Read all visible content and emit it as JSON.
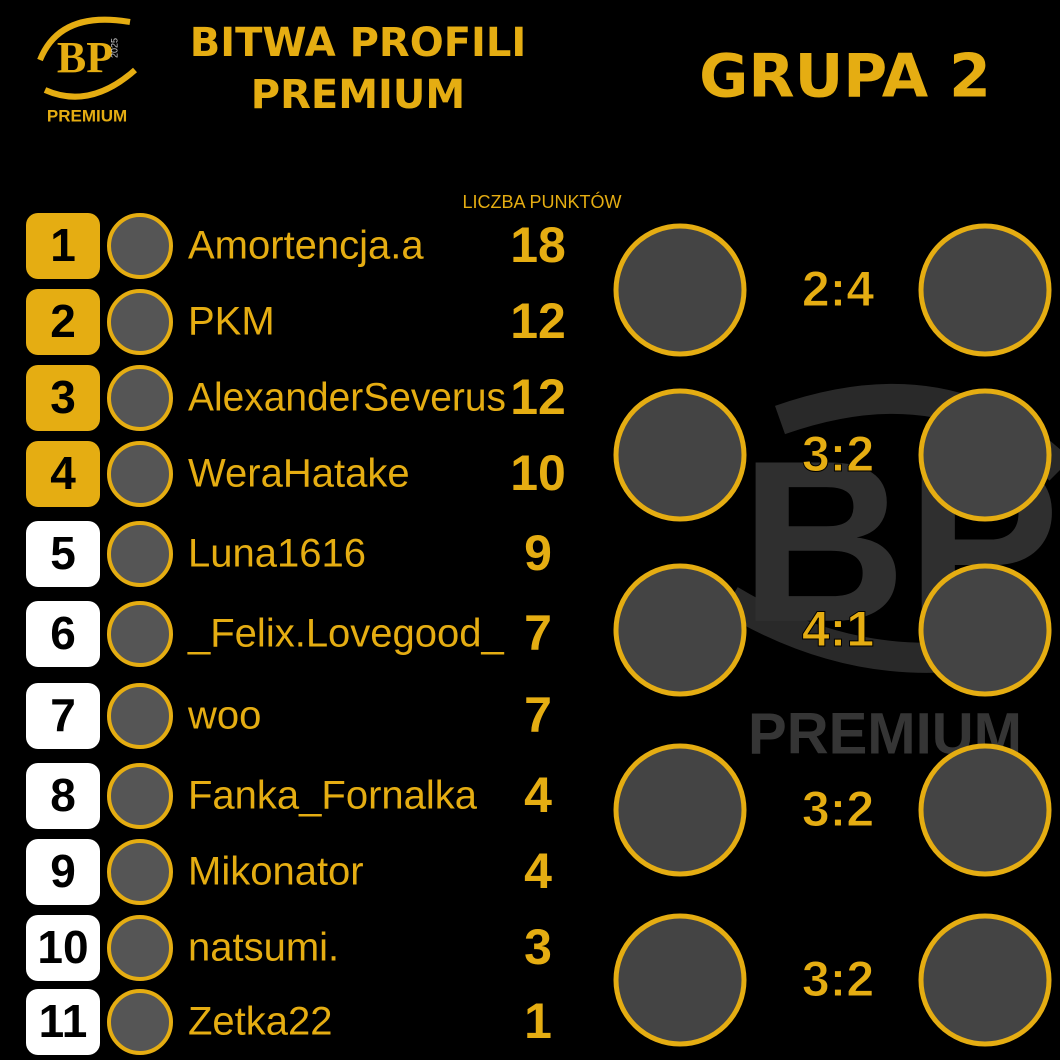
{
  "logo": {
    "initials": "BP",
    "year": "2025",
    "label": "PREMIUM"
  },
  "header": {
    "title_line1": "BITWA PROFILI",
    "title_line2": "PREMIUM",
    "group": "GRUPA 2"
  },
  "table": {
    "points_header": "LICZBA PUNKTÓW",
    "rows": [
      {
        "rank": 1,
        "name": "Amortencja.a",
        "points": 18
      },
      {
        "rank": 2,
        "name": "PKM",
        "points": 12
      },
      {
        "rank": 3,
        "name": "AlexanderSeverus",
        "points": 12
      },
      {
        "rank": 4,
        "name": "WeraHatake",
        "points": 10
      },
      {
        "rank": 5,
        "name": "Luna1616",
        "points": 9
      },
      {
        "rank": 6,
        "name": "_Felix.Lovegood_",
        "points": 7
      },
      {
        "rank": 7,
        "name": "woo",
        "points": 7
      },
      {
        "rank": 8,
        "name": "Fanka_Fornalka",
        "points": 4
      },
      {
        "rank": 9,
        "name": "Mikonator",
        "points": 4
      },
      {
        "rank": 10,
        "name": "natsumi.",
        "points": 3
      },
      {
        "rank": 11,
        "name": "Zetka22",
        "points": 1
      }
    ]
  },
  "matches": [
    "2:4",
    "3:2",
    "4:1",
    "3:2",
    "3:2"
  ],
  "watermark": {
    "initials": "BP",
    "label": "PREMIUM"
  }
}
